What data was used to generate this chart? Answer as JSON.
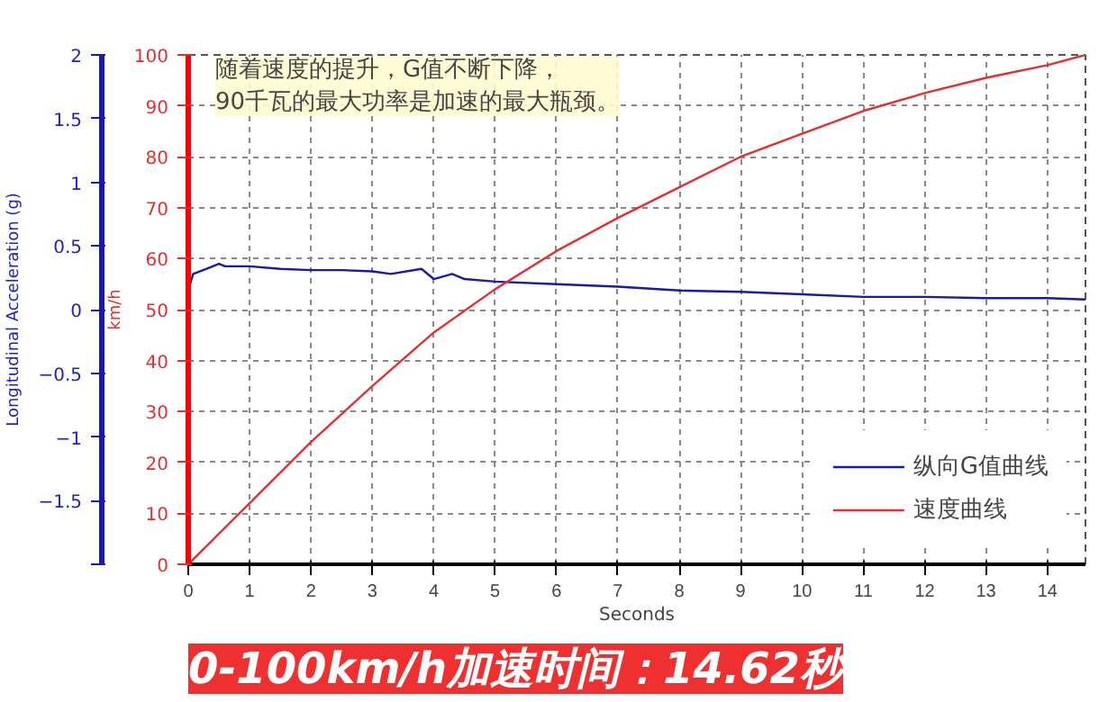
{
  "chart_data": {
    "type": "line",
    "xlabel": "Seconds",
    "ylabel": "Longitudinal Acceleration (g)",
    "y2label": "km/h",
    "xlim": [
      0,
      14.62
    ],
    "xticks": [
      0,
      1,
      2,
      3,
      4,
      5,
      6,
      7,
      8,
      9,
      10,
      11,
      12,
      13,
      14
    ],
    "ylim": [
      -2,
      2
    ],
    "yticks": [
      {
        "value": -2,
        "label": null
      },
      -1.5,
      -1,
      -0.5,
      0,
      0.5,
      1,
      1.5,
      2
    ],
    "y2lim": [
      0,
      100
    ],
    "y2ticks": [
      0,
      10,
      20,
      30,
      40,
      50,
      60,
      70,
      80,
      90,
      100
    ],
    "grid": true,
    "legend": "bottom right",
    "series": [
      {
        "name": "纵向G值曲线",
        "color": "#1a1aa6",
        "x": [
          0.03,
          0.08,
          0.3,
          0.5,
          0.6,
          1,
          1.5,
          2,
          2.5,
          3,
          3.3,
          3.8,
          4.0,
          4.3,
          4.5,
          5,
          6,
          7,
          8,
          9,
          10,
          11,
          12,
          13,
          14,
          14.62
        ],
        "values": [
          0.2,
          0.28,
          0.32,
          0.36,
          0.34,
          0.34,
          0.32,
          0.31,
          0.31,
          0.3,
          0.28,
          0.32,
          0.24,
          0.28,
          0.24,
          0.22,
          0.2,
          0.18,
          0.15,
          0.14,
          0.12,
          0.1,
          0.1,
          0.09,
          0.09,
          0.08
        ]
      },
      {
        "name": "速度曲线",
        "color": "#e03030",
        "axis": "y2",
        "x": [
          0,
          1,
          2,
          3,
          4,
          5,
          6,
          7,
          8,
          9,
          10,
          11,
          12,
          13,
          14,
          14.62
        ],
        "values": [
          0,
          12,
          24,
          35,
          45.5,
          54,
          61.5,
          68,
          74,
          80,
          84.5,
          89,
          92.5,
          95.5,
          98,
          100
        ]
      }
    ],
    "annotations": [
      "随着速度的提升，G值不断下降，\n90千瓦的最大功率是加速的最大瓶颈。",
      "0-100km/h加速时间：14.62秒"
    ]
  }
}
